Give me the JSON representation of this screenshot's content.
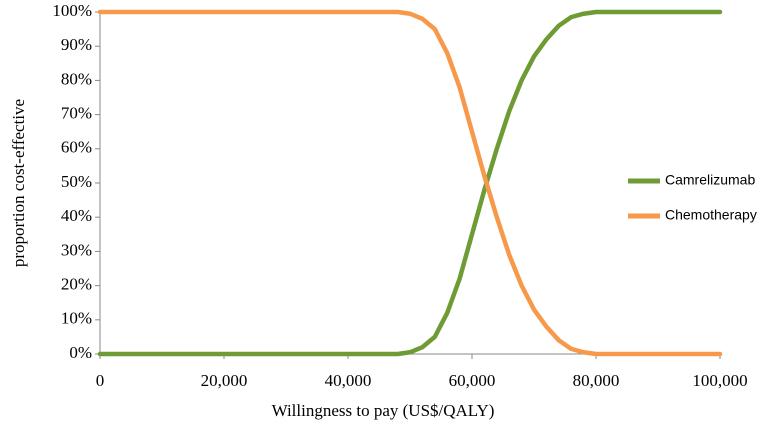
{
  "chart_data": {
    "type": "line",
    "xlabel": "Willingness to pay (US$/QALY)",
    "ylabel": "proportion cost-effective",
    "x": [
      0,
      10000,
      20000,
      30000,
      40000,
      46000,
      48000,
      50000,
      52000,
      54000,
      56000,
      58000,
      60000,
      62000,
      64000,
      66000,
      68000,
      70000,
      72000,
      74000,
      76000,
      78000,
      80000,
      85000,
      90000,
      100000
    ],
    "series": [
      {
        "name": "Camrelizumab",
        "color": "#6f9b34",
        "values": [
          0,
          0,
          0,
          0,
          0,
          0,
          0,
          0.5,
          2,
          5,
          12,
          22,
          35,
          48,
          60,
          71,
          80,
          87,
          92,
          96,
          98.5,
          99.5,
          100,
          100,
          100,
          100
        ]
      },
      {
        "name": "Chemotherapy",
        "color": "#f7994a",
        "values": [
          100,
          100,
          100,
          100,
          100,
          100,
          100,
          99.5,
          98,
          95,
          88,
          78,
          65,
          52,
          40,
          29,
          20,
          13,
          8,
          4,
          1.5,
          0.5,
          0,
          0,
          0,
          0
        ]
      }
    ],
    "xlim": [
      0,
      100000
    ],
    "xticks": [
      0,
      {
        "value": 20000,
        "label": "20,000"
      },
      {
        "value": 40000,
        "label": "40,000"
      },
      {
        "value": 60000,
        "label": "60,000"
      },
      {
        "value": 80000,
        "label": "80,000"
      },
      {
        "value": 100000,
        "label": "100,000"
      }
    ],
    "ylim": [
      0,
      100
    ],
    "yticks": [
      {
        "value": 0,
        "label": "0%"
      },
      {
        "value": 10,
        "label": "10%"
      },
      {
        "value": 20,
        "label": "20%"
      },
      {
        "value": 30,
        "label": "30%"
      },
      {
        "value": 40,
        "label": "40%"
      },
      {
        "value": 50,
        "label": "50%"
      },
      {
        "value": 60,
        "label": "60%"
      },
      {
        "value": 70,
        "label": "70%"
      },
      {
        "value": 80,
        "label": "80%"
      },
      {
        "value": 90,
        "label": "90%"
      },
      {
        "value": 100,
        "label": "100%"
      }
    ],
    "grid": false,
    "legend": "right"
  }
}
